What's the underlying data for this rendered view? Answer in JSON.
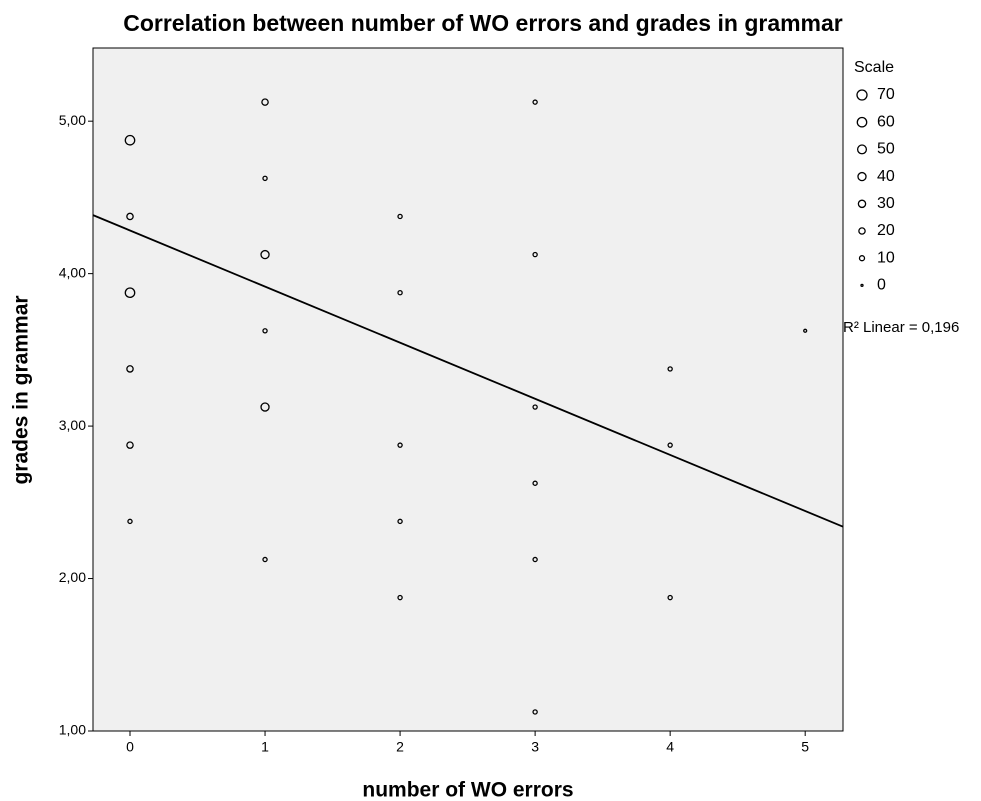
{
  "chart_data": {
    "type": "bubble",
    "title": "Correlation between number of WO errors and grades in grammar",
    "x_label": "number of WO errors",
    "y_label": "grades in grammar",
    "xlim": [
      -0.274,
      5.28
    ],
    "ylim": [
      1.0,
      5.48
    ],
    "xticks": [
      0,
      1,
      2,
      3,
      4,
      5
    ],
    "yticks": [
      {
        "value": 1,
        "label": "1,00"
      },
      {
        "value": 2,
        "label": "2,00"
      },
      {
        "value": 3,
        "label": "3,00"
      },
      {
        "value": 4,
        "label": "4,00"
      },
      {
        "value": 5,
        "label": "5,00"
      }
    ],
    "series": [
      {
        "x": [
          0,
          0,
          0,
          0,
          0,
          0,
          1,
          1,
          1,
          1,
          1,
          1,
          2,
          2,
          2,
          2,
          2,
          3,
          3,
          3,
          3,
          3,
          3,
          4,
          4,
          4,
          5
        ],
        "y": [
          4.875,
          4.375,
          3.875,
          3.375,
          2.875,
          2.375,
          5.125,
          4.625,
          4.125,
          3.625,
          3.125,
          2.125,
          4.375,
          3.875,
          2.875,
          2.375,
          1.875,
          5.125,
          4.125,
          3.125,
          2.625,
          2.125,
          1.125,
          3.375,
          2.875,
          1.875,
          3.625
        ],
        "size": [
          60,
          20,
          60,
          20,
          20,
          5,
          20,
          5,
          40,
          5,
          40,
          5,
          5,
          5,
          5,
          5,
          5,
          5,
          5,
          5,
          5,
          5,
          5,
          5,
          5,
          5,
          1
        ],
        "color": "#000000"
      }
    ],
    "size_legend": {
      "title": "Scale",
      "values": [
        70,
        60,
        50,
        40,
        30,
        20,
        10,
        0
      ]
    },
    "fit_line": {
      "intercept": 4.283,
      "slope": -0.368,
      "color": "#000000",
      "annotation": "R² Linear = 0,196"
    },
    "background": "#f0f0f0"
  }
}
